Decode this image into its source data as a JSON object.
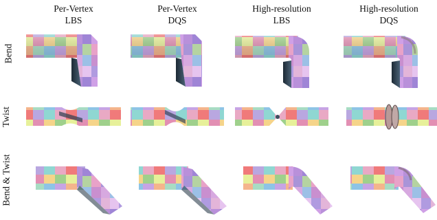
{
  "columns": [
    {
      "line1": "Per-Vertex",
      "line2": "LBS"
    },
    {
      "line1": "Per-Vertex",
      "line2": "DQS"
    },
    {
      "line1": "High-resolution",
      "line2": "LBS"
    },
    {
      "line1": "High-resolution",
      "line2": "DQS"
    }
  ],
  "rows": [
    "Bend",
    "Twist",
    "Bend & Twist"
  ]
}
